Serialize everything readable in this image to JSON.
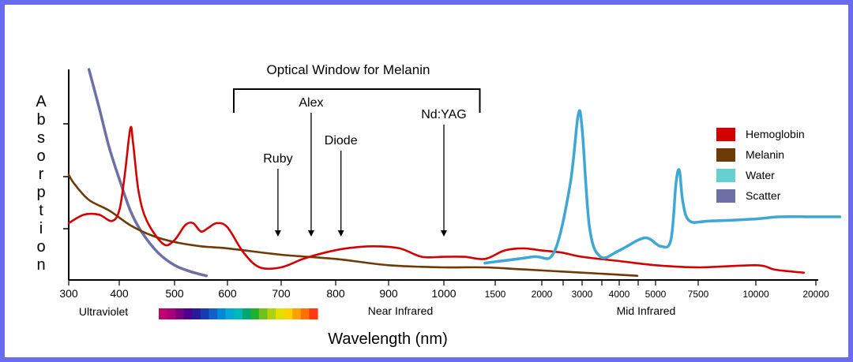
{
  "chart_data": {
    "type": "line",
    "title": "Optical Window for Melanin",
    "xlabel": "Wavelength (nm)",
    "ylabel": "Absorption",
    "x_tick_labels": [
      "300",
      "400",
      "500",
      "600",
      "700",
      "800",
      "900",
      "1000",
      "1500",
      "2000",
      "3000",
      "4000",
      "5000",
      "7500",
      "10000",
      "20000"
    ],
    "x_tick_values_nm": [
      300,
      400,
      500,
      600,
      700,
      800,
      900,
      1000,
      1500,
      2000,
      3000,
      4000,
      5000,
      7500,
      10000,
      20000
    ],
    "regions": [
      "Ultraviolet",
      "Near Infrared",
      "Mid Infrared"
    ],
    "optical_window_nm": [
      600,
      1350
    ],
    "lasers": [
      {
        "label": "Ruby",
        "wavelength_nm": 694
      },
      {
        "label": "Alex",
        "wavelength_nm": 755
      },
      {
        "label": "Diode",
        "wavelength_nm": 810
      },
      {
        "label": "Nd:YAG",
        "wavelength_nm": 1000
      }
    ],
    "legend_position": "right",
    "grid": false,
    "y_unit": "relative absorption (0 = bottom axis, 1 = top of axis)",
    "series": [
      {
        "name": "Hemoglobin",
        "color": "#d40000",
        "points": [
          [
            300,
            0.27
          ],
          [
            330,
            0.31
          ],
          [
            360,
            0.31
          ],
          [
            385,
            0.28
          ],
          [
            400,
            0.33
          ],
          [
            410,
            0.5
          ],
          [
            420,
            0.72
          ],
          [
            425,
            0.65
          ],
          [
            435,
            0.42
          ],
          [
            450,
            0.28
          ],
          [
            480,
            0.17
          ],
          [
            500,
            0.19
          ],
          [
            520,
            0.26
          ],
          [
            535,
            0.27
          ],
          [
            550,
            0.23
          ],
          [
            565,
            0.25
          ],
          [
            580,
            0.27
          ],
          [
            600,
            0.25
          ],
          [
            630,
            0.13
          ],
          [
            660,
            0.06
          ],
          [
            700,
            0.06
          ],
          [
            740,
            0.1
          ],
          [
            780,
            0.13
          ],
          [
            820,
            0.15
          ],
          [
            870,
            0.16
          ],
          [
            920,
            0.15
          ],
          [
            960,
            0.11
          ],
          [
            1000,
            0.11
          ],
          [
            1200,
            0.11
          ],
          [
            1400,
            0.1
          ],
          [
            1600,
            0.14
          ],
          [
            1800,
            0.15
          ],
          [
            2000,
            0.14
          ],
          [
            2500,
            0.13
          ],
          [
            3000,
            0.11
          ],
          [
            4000,
            0.09
          ],
          [
            5000,
            0.07
          ],
          [
            7500,
            0.06
          ],
          [
            10000,
            0.07
          ],
          [
            13000,
            0.05
          ],
          [
            16000,
            0.04
          ],
          [
            18000,
            0.035
          ]
        ]
      },
      {
        "name": "Melanin",
        "color": "#6e3a08",
        "points": [
          [
            300,
            0.5
          ],
          [
            310,
            0.46
          ],
          [
            340,
            0.38
          ],
          [
            380,
            0.33
          ],
          [
            420,
            0.26
          ],
          [
            460,
            0.21
          ],
          [
            500,
            0.18
          ],
          [
            550,
            0.16
          ],
          [
            600,
            0.15
          ],
          [
            700,
            0.12
          ],
          [
            800,
            0.1
          ],
          [
            900,
            0.07
          ],
          [
            1000,
            0.06
          ],
          [
            1400,
            0.06
          ],
          [
            1800,
            0.05
          ],
          [
            2500,
            0.04
          ],
          [
            3500,
            0.03
          ],
          [
            4500,
            0.02
          ]
        ]
      },
      {
        "name": "Water",
        "color": "#3ea7d6",
        "points": [
          [
            1400,
            0.08
          ],
          [
            1900,
            0.11
          ],
          [
            2300,
            0.13
          ],
          [
            2700,
            0.45
          ],
          [
            2900,
            0.78
          ],
          [
            3000,
            0.72
          ],
          [
            3200,
            0.25
          ],
          [
            3500,
            0.11
          ],
          [
            4000,
            0.14
          ],
          [
            4700,
            0.2
          ],
          [
            5300,
            0.16
          ],
          [
            5900,
            0.19
          ],
          [
            6200,
            0.46
          ],
          [
            6400,
            0.52
          ],
          [
            6600,
            0.37
          ],
          [
            7000,
            0.28
          ],
          [
            8000,
            0.28
          ],
          [
            10000,
            0.29
          ],
          [
            14000,
            0.3
          ],
          [
            20000,
            0.3
          ],
          [
            24000,
            0.3
          ]
        ]
      },
      {
        "name": "Scatter",
        "color": "#6f6fa8",
        "points": [
          [
            340,
            1.0
          ],
          [
            360,
            0.82
          ],
          [
            380,
            0.63
          ],
          [
            400,
            0.48
          ],
          [
            420,
            0.33
          ],
          [
            440,
            0.23
          ],
          [
            470,
            0.13
          ],
          [
            500,
            0.07
          ],
          [
            530,
            0.04
          ],
          [
            560,
            0.02
          ]
        ]
      }
    ]
  }
}
